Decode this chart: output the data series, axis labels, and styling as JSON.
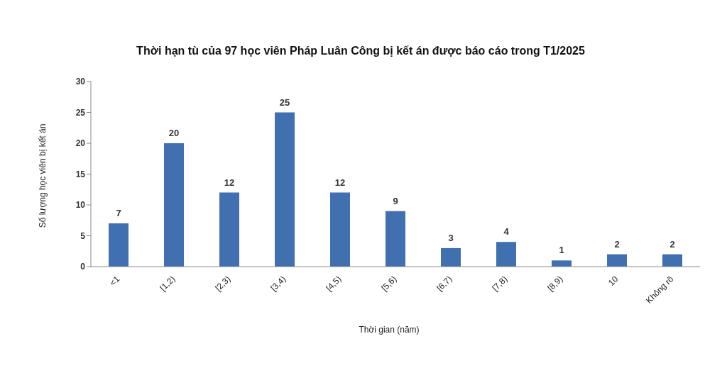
{
  "chart_data": {
    "type": "bar",
    "title": "Thời hạn tù của 97 học viên Pháp Luân Công bị kết án được báo cáo trong T1/2025",
    "xlabel": "Thời gian (năm)",
    "ylabel": "Số lượng học viên bị kết án",
    "categories": [
      "<1",
      "[1,2)",
      "[2,3)",
      "[3,4)",
      "[4,5)",
      "[5,6)",
      "[6,7)",
      "[7,8)",
      "[8,9)",
      "10",
      "Không rõ"
    ],
    "values": [
      7,
      20,
      12,
      25,
      12,
      9,
      3,
      4,
      1,
      2,
      2
    ],
    "color": "#4070b0",
    "ylim": [
      0,
      30
    ],
    "yticks": [
      0,
      5,
      10,
      15,
      20,
      25,
      30
    ],
    "grid": false,
    "data_labels": true
  }
}
